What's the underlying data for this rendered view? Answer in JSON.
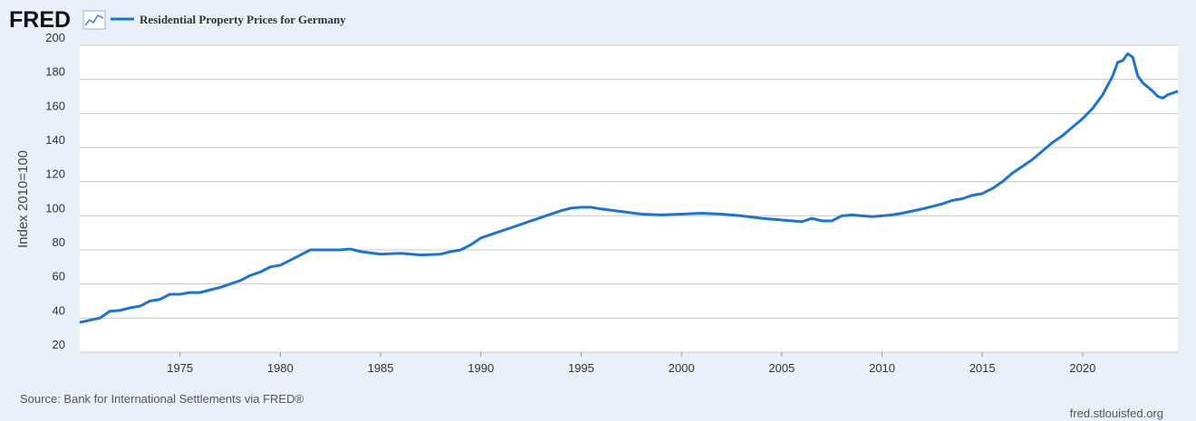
{
  "logo": "FRED",
  "chart_data": {
    "type": "line",
    "ylabel": "Index 2010=100",
    "source": "Source: Bank for International Settlements via FRED®",
    "footer": "fred.stlouisfed.org",
    "x": [
      1970,
      1971,
      1971.5,
      1972,
      1972.5,
      1973,
      1973.5,
      1974,
      1974.5,
      1975,
      1975.5,
      1976,
      1976.5,
      1977,
      1977.5,
      1978,
      1978.5,
      1979,
      1979.5,
      1980,
      1980.5,
      1981,
      1981.5,
      1982,
      1983,
      1983.5,
      1984,
      1985,
      1986,
      1987,
      1988,
      1988.5,
      1989,
      1989.5,
      1990,
      1990.5,
      1991,
      1991.5,
      1992,
      1992.5,
      1993,
      1993.5,
      1994,
      1994.5,
      1995,
      1995.5,
      1996,
      1997,
      1998,
      1999,
      2000,
      2001,
      2002,
      2003,
      2004,
      2005,
      2006,
      2006.5,
      2007,
      2007.5,
      2008,
      2008.5,
      2009,
      2009.5,
      2010,
      2010.5,
      2011,
      2012,
      2013,
      2013.5,
      2014,
      2014.5,
      2015,
      2015.5,
      2016,
      2016.5,
      2017,
      2017.5,
      2018,
      2018.5,
      2019,
      2019.5,
      2020,
      2020.5,
      2021,
      2021.5,
      2021.75,
      2022,
      2022.25,
      2022.5,
      2022.75,
      2023,
      2023.5,
      2023.75,
      2024,
      2024.25,
      2024.5,
      2024.75
    ],
    "series": [
      {
        "name": "Residential Property Prices for Germany",
        "color": "#1a73d9",
        "values": [
          37.5,
          40,
          44,
          44.5,
          46,
          47,
          50,
          51,
          54,
          54,
          55,
          55,
          56.5,
          58,
          60,
          62,
          65,
          67,
          70,
          71,
          74,
          77,
          80,
          80,
          80,
          80.5,
          79,
          77.5,
          78,
          77,
          77.5,
          79,
          80,
          83,
          87,
          89,
          91,
          93,
          95,
          97,
          99,
          101,
          103,
          104.5,
          105,
          105,
          104,
          102.5,
          101,
          100.5,
          101,
          101.5,
          101,
          100,
          98.5,
          97.5,
          96.5,
          98.5,
          97,
          97,
          100,
          100.5,
          100,
          99.5,
          100,
          100.5,
          101.5,
          104,
          107,
          109,
          110,
          112,
          113,
          116,
          120,
          125,
          129,
          133,
          138,
          143,
          147,
          152,
          157,
          163,
          171,
          182,
          190,
          191,
          195,
          193,
          182,
          178,
          173,
          170,
          169,
          171,
          172,
          173
        ]
      }
    ],
    "xlim": [
      1970,
      2024.75
    ],
    "xticks": [
      1975,
      1980,
      1985,
      1990,
      1995,
      2000,
      2005,
      2010,
      2015,
      2020
    ],
    "ylim": [
      20,
      200
    ],
    "yticks": [
      20,
      40,
      60,
      80,
      100,
      120,
      140,
      160,
      180,
      200
    ],
    "grid": true
  }
}
